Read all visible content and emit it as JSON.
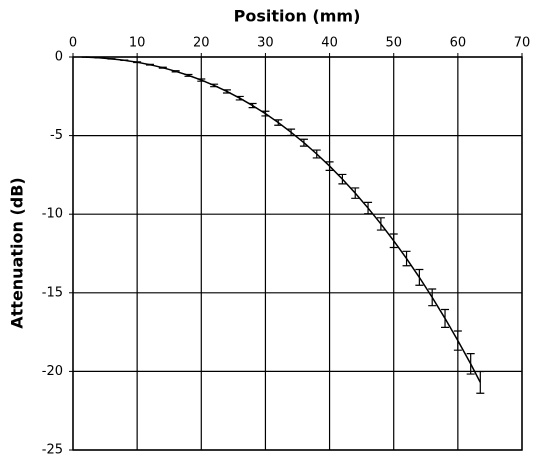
{
  "chart_data": {
    "type": "line",
    "x_label": "Position (mm)",
    "y_label": "Attenuation (dB)",
    "x": [
      2,
      4,
      6,
      8,
      10,
      12,
      14,
      16,
      18,
      20,
      22,
      24,
      26,
      28,
      30,
      32,
      34,
      36,
      38,
      40,
      42,
      44,
      46,
      48,
      50,
      52,
      54,
      56,
      58,
      60,
      62,
      63.5
    ],
    "series": [
      {
        "color": "#000000",
        "values": [
          -0.01,
          -0.05,
          -0.12,
          -0.21,
          -0.33,
          -0.49,
          -0.68,
          -0.91,
          -1.17,
          -1.47,
          -1.81,
          -2.19,
          -2.62,
          -3.09,
          -3.6,
          -4.17,
          -4.79,
          -5.45,
          -6.17,
          -6.94,
          -7.77,
          -8.66,
          -9.61,
          -10.62,
          -11.69,
          -12.82,
          -14.02,
          -15.29,
          -16.63,
          -18.04,
          -19.52,
          -20.7
        ],
        "errors": [
          0.01,
          0.01,
          0.01,
          0.01,
          0.02,
          0.02,
          0.03,
          0.04,
          0.06,
          0.07,
          0.08,
          0.1,
          0.11,
          0.13,
          0.15,
          0.17,
          0.2,
          0.22,
          0.25,
          0.27,
          0.3,
          0.33,
          0.36,
          0.39,
          0.43,
          0.46,
          0.5,
          0.53,
          0.57,
          0.61,
          0.65,
          0.69
        ]
      }
    ],
    "xlim": [
      0,
      70
    ],
    "xticks": [
      0,
      10,
      20,
      30,
      40,
      50,
      60,
      70
    ],
    "ylim": [
      -25,
      0
    ],
    "yticks": [
      0,
      -5,
      -10,
      -15,
      -20,
      -25
    ],
    "grid": true,
    "x_axis_position": "top"
  }
}
